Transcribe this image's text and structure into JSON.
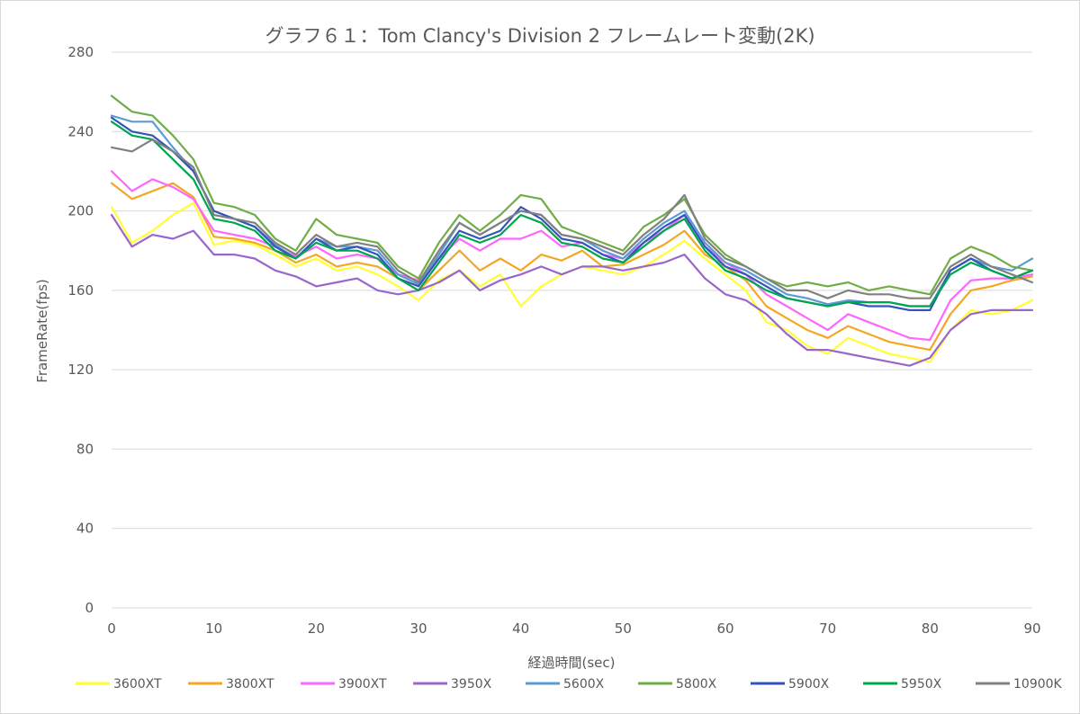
{
  "chart_data": {
    "type": "line",
    "title": "グラフ６１：Tom Clancy's Division 2 フレームレート変動(2K)",
    "xlabel": "経過時間(sec)",
    "ylabel": "FrameRate(fps)",
    "xlim": [
      0,
      90
    ],
    "ylim": [
      0,
      280
    ],
    "xticks": [
      0,
      10,
      20,
      30,
      40,
      50,
      60,
      70,
      80,
      90
    ],
    "yticks": [
      0,
      40,
      80,
      120,
      160,
      200,
      240,
      280
    ],
    "grid": "horizontal",
    "legend": "bottom",
    "x": [
      0,
      2,
      4,
      6,
      8,
      10,
      12,
      14,
      16,
      18,
      20,
      22,
      24,
      26,
      28,
      30,
      32,
      34,
      36,
      38,
      40,
      42,
      44,
      46,
      48,
      50,
      52,
      54,
      56,
      58,
      60,
      62,
      64,
      66,
      68,
      70,
      72,
      74,
      76,
      78,
      80,
      82,
      84,
      86,
      88,
      90
    ],
    "series": [
      {
        "name": "3600XT",
        "color": "#ffff33",
        "values": [
          202,
          184,
          190,
          198,
          204,
          183,
          185,
          183,
          178,
          172,
          176,
          170,
          172,
          168,
          162,
          155,
          165,
          170,
          162,
          168,
          152,
          162,
          168,
          172,
          170,
          168,
          172,
          178,
          185,
          176,
          168,
          160,
          144,
          140,
          132,
          128,
          136,
          132,
          128,
          126,
          124,
          140,
          150,
          148,
          150,
          155
        ]
      },
      {
        "name": "3800XT",
        "color": "#f5a623",
        "values": [
          214,
          206,
          210,
          214,
          207,
          187,
          186,
          184,
          180,
          174,
          178,
          172,
          174,
          172,
          166,
          160,
          170,
          180,
          170,
          176,
          170,
          178,
          175,
          180,
          172,
          173,
          178,
          183,
          190,
          178,
          172,
          165,
          152,
          146,
          140,
          136,
          142,
          138,
          134,
          132,
          130,
          148,
          160,
          162,
          165,
          167
        ]
      },
      {
        "name": "3900XT",
        "color": "#ff66ff",
        "values": [
          220,
          210,
          216,
          212,
          206,
          190,
          188,
          186,
          182,
          177,
          182,
          176,
          178,
          176,
          168,
          165,
          176,
          186,
          180,
          186,
          186,
          190,
          182,
          184,
          178,
          176,
          184,
          190,
          198,
          182,
          174,
          168,
          158,
          152,
          146,
          140,
          148,
          144,
          140,
          136,
          135,
          155,
          165,
          166,
          166,
          168
        ]
      },
      {
        "name": "3950X",
        "color": "#9966cc",
        "values": [
          198,
          182,
          188,
          186,
          190,
          178,
          178,
          176,
          170,
          167,
          162,
          164,
          166,
          160,
          158,
          160,
          164,
          170,
          160,
          165,
          168,
          172,
          168,
          172,
          172,
          170,
          172,
          174,
          178,
          166,
          158,
          155,
          148,
          138,
          130,
          130,
          128,
          126,
          124,
          122,
          126,
          140,
          148,
          150,
          150,
          150
        ]
      },
      {
        "name": "5600X",
        "color": "#5b9bd5",
        "values": [
          248,
          245,
          245,
          232,
          220,
          200,
          196,
          192,
          183,
          176,
          186,
          182,
          182,
          180,
          168,
          163,
          178,
          194,
          188,
          194,
          200,
          198,
          188,
          186,
          180,
          176,
          186,
          194,
          200,
          184,
          174,
          170,
          164,
          158,
          156,
          153,
          155,
          154,
          154,
          152,
          152,
          170,
          176,
          172,
          170,
          176
        ]
      },
      {
        "name": "5800X",
        "color": "#70ad47",
        "values": [
          258,
          250,
          248,
          238,
          226,
          204,
          202,
          198,
          186,
          180,
          196,
          188,
          186,
          184,
          172,
          166,
          184,
          198,
          190,
          198,
          208,
          206,
          192,
          188,
          184,
          180,
          192,
          198,
          206,
          188,
          178,
          172,
          166,
          162,
          164,
          162,
          164,
          160,
          162,
          160,
          158,
          176,
          182,
          178,
          172,
          170
        ]
      },
      {
        "name": "5900X",
        "color": "#3355bb",
        "values": [
          247,
          240,
          238,
          230,
          220,
          200,
          196,
          192,
          182,
          176,
          186,
          180,
          182,
          178,
          166,
          162,
          176,
          190,
          186,
          190,
          202,
          196,
          186,
          184,
          178,
          174,
          184,
          192,
          198,
          182,
          172,
          168,
          162,
          156,
          154,
          152,
          154,
          152,
          152,
          150,
          150,
          170,
          176,
          170,
          166,
          170
        ]
      },
      {
        "name": "5950X",
        "color": "#00a550",
        "values": [
          245,
          238,
          236,
          226,
          216,
          196,
          194,
          190,
          180,
          176,
          184,
          180,
          180,
          176,
          166,
          160,
          174,
          188,
          184,
          188,
          198,
          194,
          184,
          182,
          176,
          174,
          182,
          190,
          196,
          180,
          170,
          166,
          160,
          156,
          154,
          152,
          154,
          154,
          154,
          152,
          152,
          168,
          174,
          170,
          166,
          170
        ]
      },
      {
        "name": "10900K",
        "color": "#808080",
        "values": [
          232,
          230,
          236,
          230,
          222,
          198,
          196,
          194,
          184,
          178,
          188,
          182,
          184,
          182,
          170,
          164,
          180,
          194,
          188,
          194,
          200,
          198,
          188,
          186,
          182,
          178,
          188,
          196,
          208,
          186,
          176,
          172,
          166,
          160,
          160,
          156,
          160,
          158,
          158,
          156,
          156,
          172,
          178,
          172,
          168,
          164
        ]
      }
    ]
  }
}
